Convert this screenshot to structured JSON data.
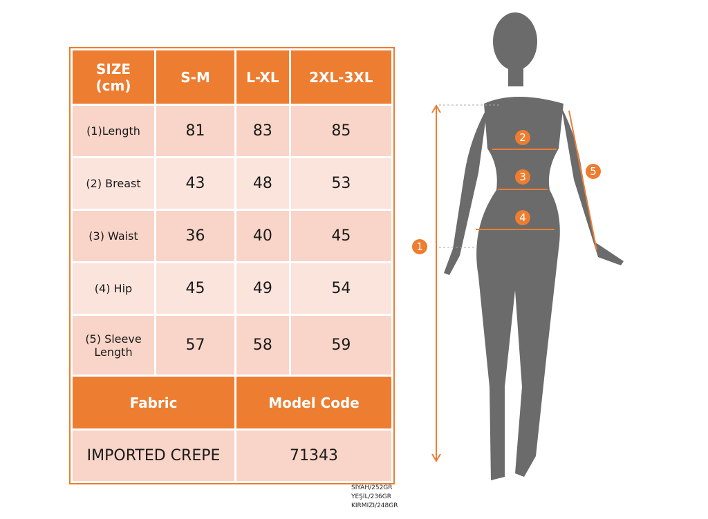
{
  "table": {
    "header": [
      "SIZE\n(cm)",
      "S-M",
      "L-XL",
      "2XL-3XL"
    ],
    "header_line1": "SIZE",
    "header_line2": "(cm)",
    "rows": [
      {
        "label": "(1)Length",
        "values": [
          "81",
          "83",
          "85"
        ]
      },
      {
        "label": "(2) Breast",
        "values": [
          "43",
          "48",
          "53"
        ]
      },
      {
        "label": "(3) Waist",
        "values": [
          "36",
          "40",
          "45"
        ]
      },
      {
        "label": "(4) Hip",
        "values": [
          "45",
          "49",
          "54"
        ]
      },
      {
        "label_line1": "(5) Sleeve",
        "label_line2": "Length",
        "values": [
          "57",
          "58",
          "59"
        ]
      }
    ],
    "fabric_label": "Fabric",
    "model_code_label": "Model Code",
    "fabric_value": "IMPORTED CREPE",
    "model_code_value": "71343"
  },
  "notes": [
    "SİYAH/252GR",
    "YEŞİL/236GR",
    "KIRMIZI/248GR"
  ],
  "figure": {
    "markers": [
      "1",
      "2",
      "3",
      "4",
      "5"
    ],
    "accent": "#ed7d31",
    "silhouette": "#6b6b6b"
  }
}
